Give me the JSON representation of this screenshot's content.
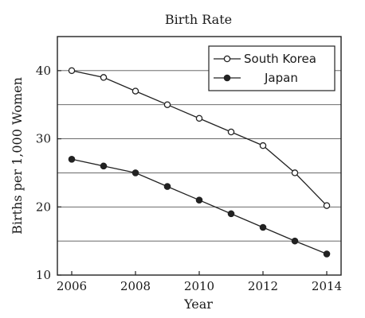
{
  "chart_data": {
    "type": "line",
    "title": "Birth Rate",
    "xlabel": "Year",
    "ylabel": "Births per 1,000 Women",
    "x": [
      2006,
      2007,
      2008,
      2009,
      2010,
      2011,
      2012,
      2013,
      2014
    ],
    "xticks": [
      2006,
      2008,
      2010,
      2012,
      2014
    ],
    "yticks": [
      10,
      20,
      30,
      40
    ],
    "gridlines": [
      15,
      20,
      25,
      30,
      35,
      40
    ],
    "xlim": [
      2006,
      2014
    ],
    "ylim": [
      10,
      45
    ],
    "grid": true,
    "legend_position": "top-right",
    "series": [
      {
        "name": "South Korea",
        "marker": "open-circle",
        "values": [
          40,
          39,
          37,
          35,
          33,
          31,
          29,
          25,
          20.2
        ]
      },
      {
        "name": "Japan",
        "marker": "filled-circle",
        "values": [
          27,
          26,
          25,
          23,
          21,
          19,
          17,
          15,
          13.1
        ]
      }
    ]
  }
}
